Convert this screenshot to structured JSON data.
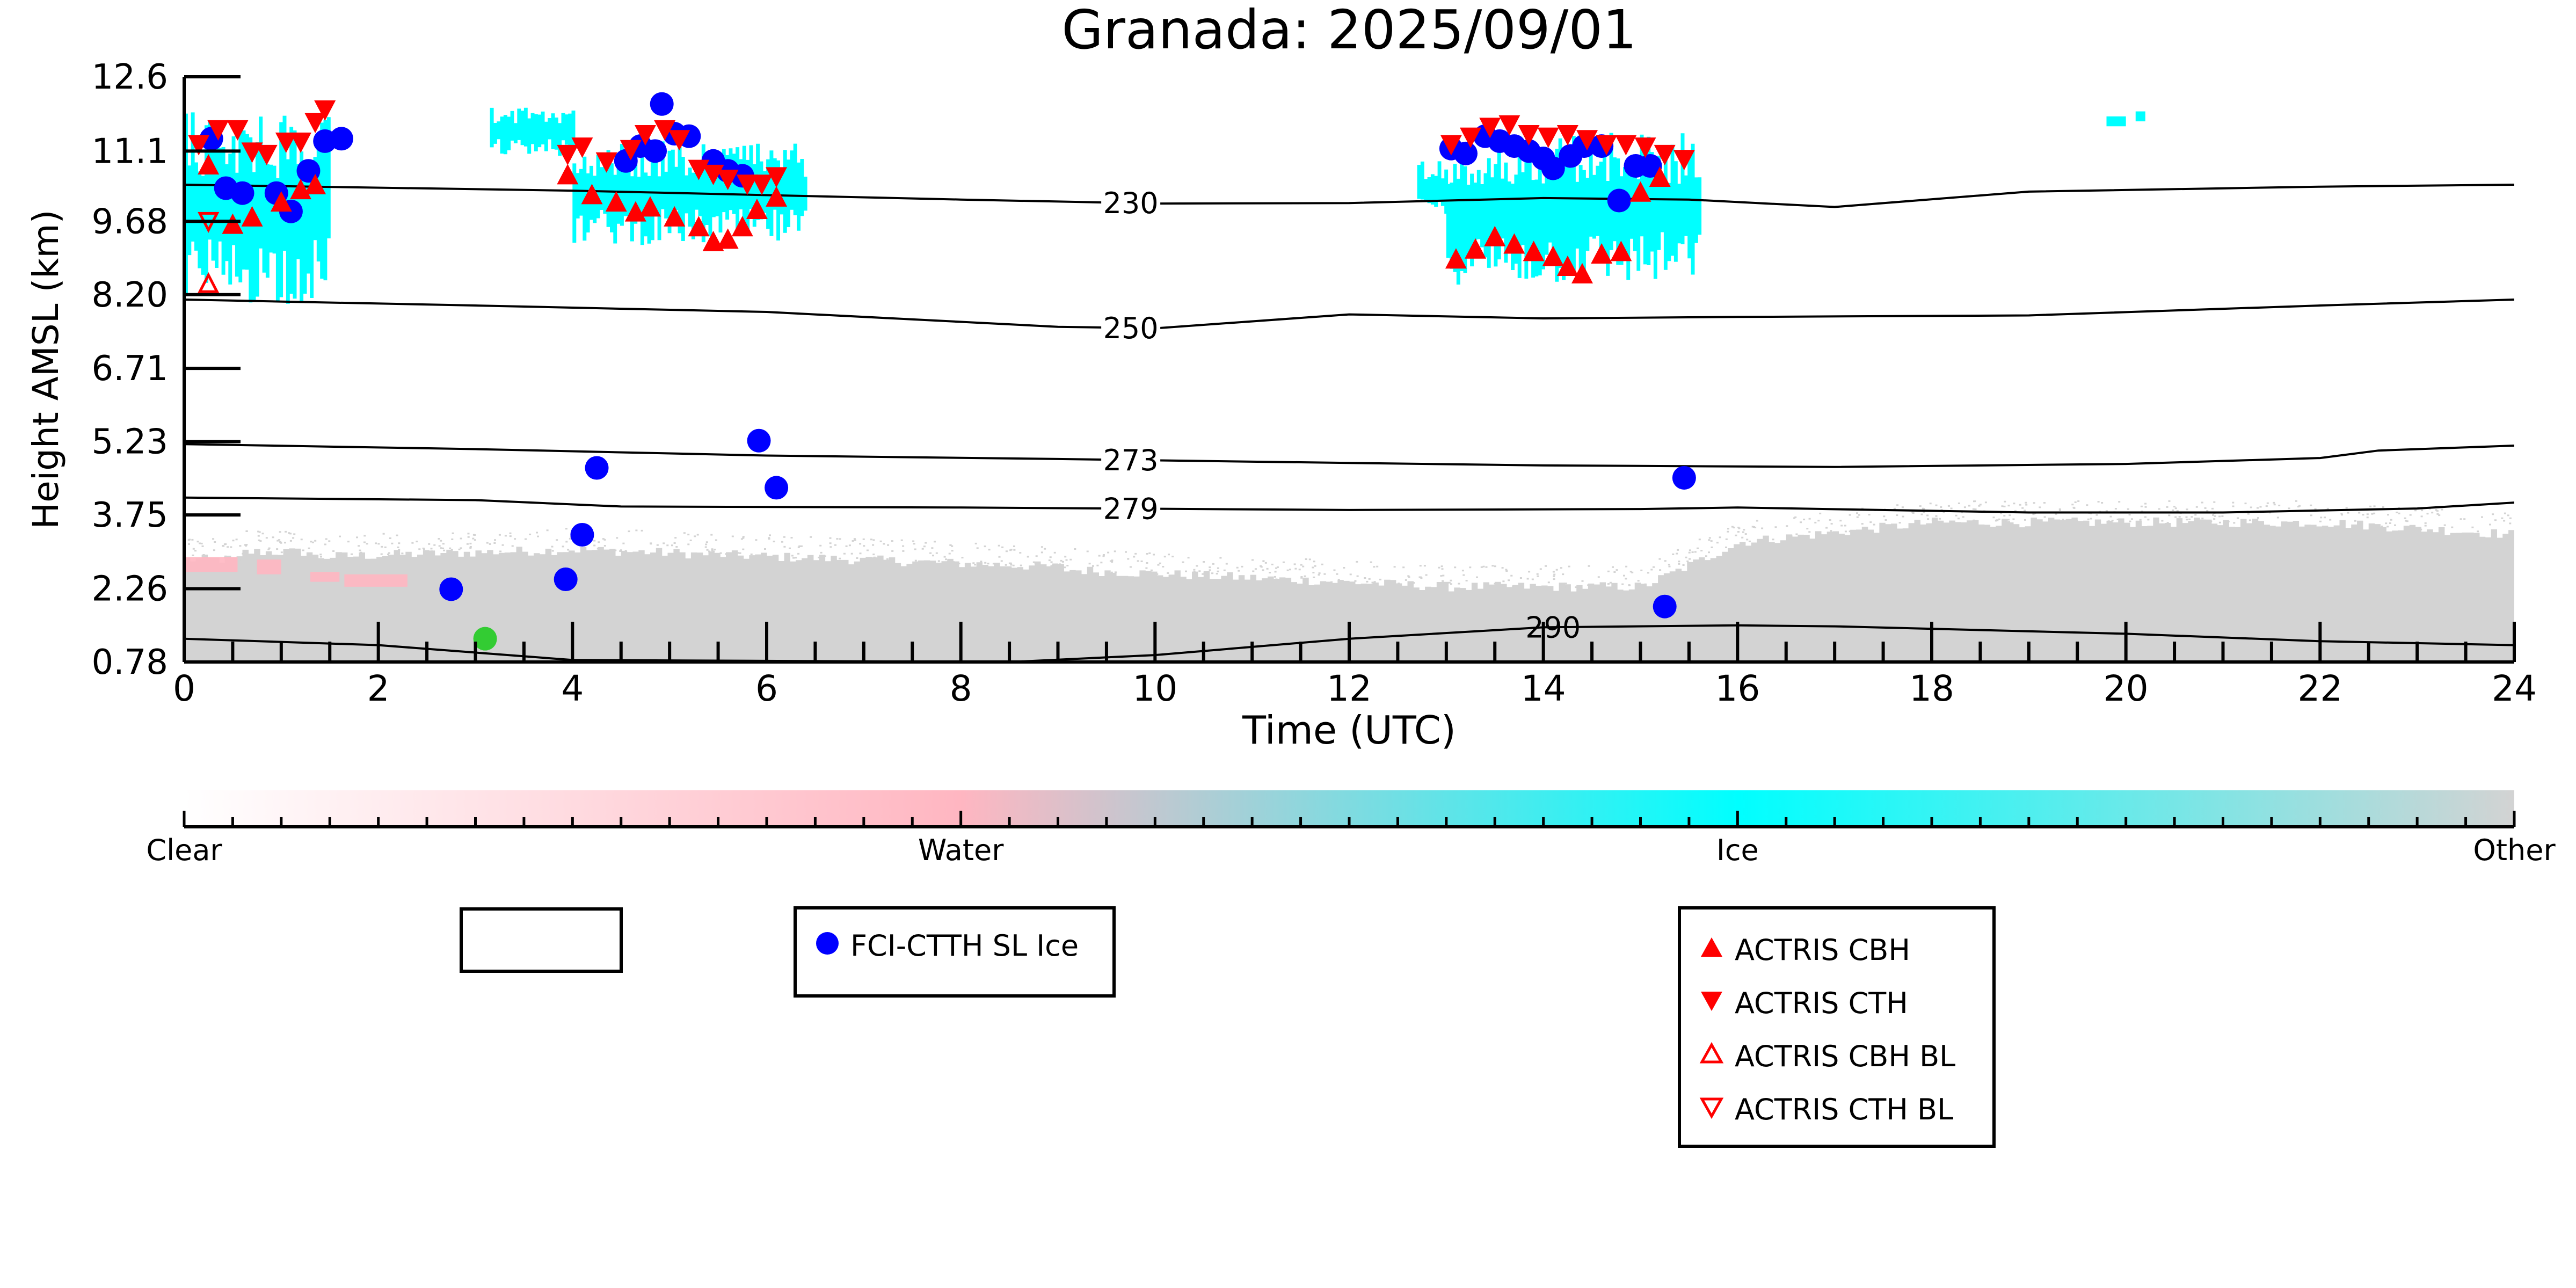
{
  "chart_data": {
    "type": "scatter",
    "title": "Granada: 2025/09/01",
    "xlabel": "Time (UTC)",
    "ylabel": "Height AMSL (km)",
    "xlim": [
      0,
      24
    ],
    "ylim": [
      0.78,
      12.6
    ],
    "x_ticks": [
      "0",
      "2",
      "4",
      "6",
      "8",
      "10",
      "12",
      "14",
      "16",
      "18",
      "20",
      "22",
      "24"
    ],
    "y_ticks": [
      "0.78",
      "2.26",
      "3.75",
      "5.23",
      "6.71",
      "8.20",
      "9.68",
      "11.1",
      "12.6"
    ],
    "grid": false,
    "colorbar": {
      "labels": [
        "Clear",
        "Water",
        "Ice",
        "Other"
      ],
      "colors": [
        "#ffffff",
        "#ffb6c1",
        "#00ffff",
        "#d3d3d3"
      ]
    },
    "isotherms": [
      {
        "label": "230",
        "label_x": 9.75,
        "points": [
          [
            0,
            10.42
          ],
          [
            4,
            10.3
          ],
          [
            8,
            10.12
          ],
          [
            10,
            10.04
          ],
          [
            12,
            10.05
          ],
          [
            14,
            10.15
          ],
          [
            15.5,
            10.12
          ],
          [
            17,
            9.97
          ],
          [
            19,
            10.28
          ],
          [
            22,
            10.38
          ],
          [
            24,
            10.42
          ]
        ]
      },
      {
        "label": "250",
        "label_x": 9.75,
        "points": [
          [
            0,
            8.1
          ],
          [
            3,
            7.98
          ],
          [
            6,
            7.85
          ],
          [
            9,
            7.55
          ],
          [
            10,
            7.52
          ],
          [
            12,
            7.8
          ],
          [
            14,
            7.72
          ],
          [
            16,
            7.75
          ],
          [
            19,
            7.78
          ],
          [
            22,
            7.98
          ],
          [
            24,
            8.1
          ]
        ]
      },
      {
        "label": "273",
        "label_x": 9.75,
        "points": [
          [
            0,
            5.18
          ],
          [
            3,
            5.08
          ],
          [
            6,
            4.95
          ],
          [
            9,
            4.88
          ],
          [
            12,
            4.8
          ],
          [
            14,
            4.75
          ],
          [
            17,
            4.72
          ],
          [
            20,
            4.78
          ],
          [
            22,
            4.9
          ],
          [
            22.6,
            5.05
          ],
          [
            24,
            5.15
          ]
        ]
      },
      {
        "label": "279",
        "label_x": 9.75,
        "points": [
          [
            0,
            4.1
          ],
          [
            3,
            4.05
          ],
          [
            4.5,
            3.92
          ],
          [
            8,
            3.9
          ],
          [
            12,
            3.85
          ],
          [
            15,
            3.87
          ],
          [
            16,
            3.9
          ],
          [
            19,
            3.8
          ],
          [
            21,
            3.8
          ],
          [
            23,
            3.88
          ],
          [
            24,
            4.0
          ]
        ]
      },
      {
        "label": "290",
        "label_x": 14.1,
        "points": [
          [
            0,
            1.25
          ],
          [
            2,
            1.12
          ],
          [
            4,
            0.82
          ],
          [
            8.5,
            0.78
          ],
          [
            10,
            0.92
          ],
          [
            12,
            1.25
          ],
          [
            14,
            1.48
          ],
          [
            16,
            1.52
          ],
          [
            17,
            1.5
          ],
          [
            20,
            1.35
          ],
          [
            22,
            1.2
          ],
          [
            24,
            1.12
          ]
        ]
      }
    ],
    "series": [
      {
        "name": "FCI-CTTH SL Ice",
        "color": "#0000ff",
        "marker": "circle",
        "x": [
          0.28,
          0.43,
          0.6,
          0.95,
          1.1,
          1.28,
          1.45,
          1.62,
          2.75,
          3.93,
          4.1,
          4.25,
          4.55,
          4.7,
          4.85,
          4.92,
          5.05,
          5.2,
          5.45,
          5.6,
          5.75,
          5.92,
          6.1,
          13.05,
          13.2,
          13.4,
          13.55,
          13.7,
          13.85,
          14.0,
          14.1,
          14.28,
          14.42,
          14.6,
          14.78,
          14.95,
          15.1,
          15.25,
          15.45
        ],
        "y": [
          11.35,
          10.35,
          10.25,
          10.25,
          9.88,
          10.7,
          11.3,
          11.35,
          2.25,
          2.45,
          3.35,
          4.7,
          10.9,
          11.2,
          11.1,
          12.05,
          11.45,
          11.4,
          10.9,
          10.7,
          10.6,
          5.25,
          4.3,
          11.15,
          11.05,
          11.4,
          11.3,
          11.2,
          11.1,
          10.95,
          10.75,
          11.0,
          11.2,
          11.2,
          10.1,
          10.8,
          10.8,
          1.9,
          4.5
        ]
      },
      {
        "name": "ACTRIS CBH",
        "color": "#ff0000",
        "marker": "triangle-up",
        "x": [
          0.25,
          0.5,
          0.7,
          1.0,
          1.2,
          1.35,
          3.95,
          4.2,
          4.45,
          4.65,
          4.8,
          5.05,
          5.3,
          5.45,
          5.6,
          5.75,
          5.9,
          6.1,
          13.1,
          13.3,
          13.5,
          13.7,
          13.9,
          14.1,
          14.25,
          14.4,
          14.6,
          14.8,
          15.0,
          15.2
        ],
        "y": [
          10.8,
          9.6,
          9.75,
          10.05,
          10.3,
          10.4,
          10.6,
          10.2,
          10.05,
          9.85,
          9.95,
          9.75,
          9.55,
          9.25,
          9.3,
          9.55,
          9.9,
          10.15,
          8.9,
          9.1,
          9.35,
          9.2,
          9.05,
          8.95,
          8.75,
          8.6,
          9.0,
          9.05,
          10.25,
          10.55
        ]
      },
      {
        "name": "ACTRIS CTH",
        "color": "#ff0000",
        "marker": "triangle-down",
        "x": [
          0.15,
          0.35,
          0.55,
          0.7,
          0.85,
          1.05,
          1.2,
          1.35,
          1.45,
          3.95,
          4.1,
          4.35,
          4.6,
          4.75,
          4.95,
          5.1,
          5.3,
          5.45,
          5.6,
          5.8,
          5.95,
          6.1,
          13.05,
          13.25,
          13.45,
          13.65,
          13.85,
          14.05,
          14.25,
          14.45,
          14.65,
          14.85,
          15.05,
          15.25,
          15.45
        ],
        "y": [
          11.25,
          11.55,
          11.55,
          11.1,
          11.05,
          11.3,
          11.3,
          11.7,
          11.95,
          11.05,
          11.2,
          10.9,
          11.15,
          11.45,
          11.55,
          11.35,
          10.75,
          10.65,
          10.55,
          10.45,
          10.45,
          10.6,
          11.25,
          11.4,
          11.6,
          11.65,
          11.45,
          11.4,
          11.45,
          11.35,
          11.25,
          11.25,
          11.2,
          11.05,
          10.95
        ]
      },
      {
        "name": "ACTRIS CBH BL",
        "color": "#ff0000",
        "marker": "triangle-up-open",
        "x": [
          0.25
        ],
        "y": [
          8.4
        ]
      },
      {
        "name": "ACTRIS CTH BL",
        "color": "#ff0000",
        "marker": "triangle-down-open",
        "x": [
          0.25
        ],
        "y": [
          9.7
        ]
      },
      {
        "name": "",
        "color": "#33cc33",
        "marker": "circle",
        "x": [
          3.1
        ],
        "y": [
          1.25
        ]
      }
    ]
  },
  "legends": {
    "empty": [],
    "fci": [
      {
        "label": "FCI-CTTH SL Ice",
        "icon": "blue-circle-icon",
        "color": "#0000ff"
      }
    ],
    "actris": [
      {
        "label": "ACTRIS CBH",
        "icon": "filled-triangle-up-icon",
        "color": "#ff0000"
      },
      {
        "label": "ACTRIS CTH",
        "icon": "filled-triangle-down-icon",
        "color": "#ff0000"
      },
      {
        "label": "ACTRIS CBH BL",
        "icon": "open-triangle-up-icon",
        "color": "#ff0000"
      },
      {
        "label": "ACTRIS CTH BL",
        "icon": "open-triangle-down-icon",
        "color": "#ff0000"
      }
    ]
  }
}
